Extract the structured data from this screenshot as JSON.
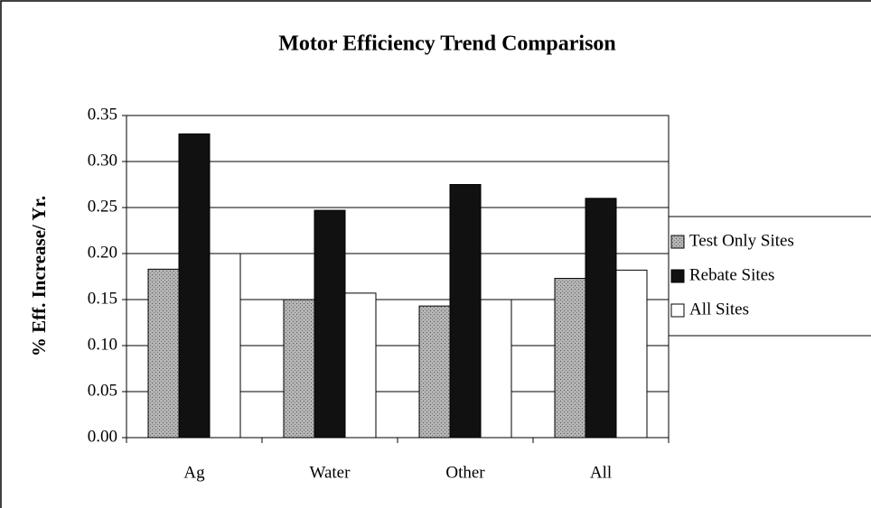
{
  "chart_data": {
    "type": "bar",
    "title": "Motor Efficiency Trend Comparison",
    "y_label": "% Eff. Increase/ Yr.",
    "categories": [
      "Ag",
      "Water",
      "Other",
      "All"
    ],
    "series": [
      {
        "name": "Test Only Sites",
        "color": "#a8a8a8",
        "values": [
          0.183,
          0.15,
          0.143,
          0.173
        ]
      },
      {
        "name": "Rebate Sites",
        "color": "#111111",
        "values": [
          0.33,
          0.247,
          0.275,
          0.26
        ]
      },
      {
        "name": "All Sites",
        "color": "#ffffff",
        "values": [
          0.2,
          0.157,
          0.15,
          0.182
        ]
      }
    ],
    "ylim": [
      0,
      0.35
    ],
    "yticks": [
      {
        "value": 0,
        "label": "0.00"
      },
      0.05,
      {
        "value": 0.1,
        "label": "0.10"
      },
      0.15,
      {
        "value": 0.2,
        "label": "0.20"
      },
      0.25,
      {
        "value": 0.3,
        "label": "0.30"
      },
      0.35
    ],
    "grid": true,
    "legend": "right"
  }
}
